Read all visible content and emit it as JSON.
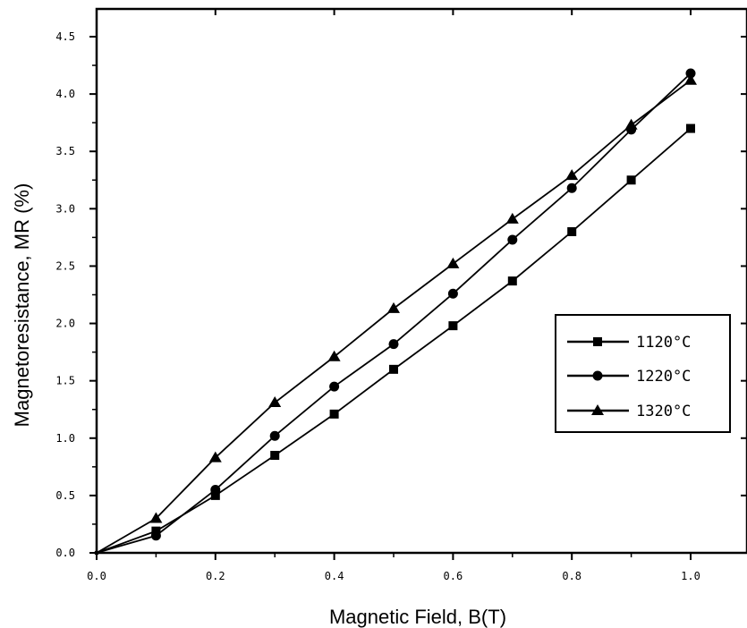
{
  "chart_data": {
    "type": "line",
    "xlabel": "Magnetic Field, B(T)",
    "ylabel": "Magnetoresistance, MR (%)",
    "xlim": [
      0.0,
      1.0
    ],
    "ylim": [
      0.0,
      4.5
    ],
    "x_ticks": [
      "0.0",
      "0.2",
      "0.4",
      "0.6",
      "0.8",
      "1.0"
    ],
    "y_ticks": [
      "0.0",
      "0.5",
      "1.0",
      "1.5",
      "2.0",
      "2.5",
      "3.0",
      "3.5",
      "4.0",
      "4.5"
    ],
    "grid": false,
    "legend_position": "right",
    "colors": {
      "line": "#000000",
      "background": "#ffffff"
    },
    "series": [
      {
        "name": "1120°C",
        "marker": "square",
        "x": [
          0.0,
          0.1,
          0.2,
          0.3,
          0.4,
          0.5,
          0.6,
          0.7,
          0.8,
          0.9,
          1.0
        ],
        "values": [
          0.0,
          0.19,
          0.5,
          0.85,
          1.21,
          1.6,
          1.98,
          2.37,
          2.8,
          3.25,
          3.7
        ]
      },
      {
        "name": "1220°C",
        "marker": "circle",
        "x": [
          0.0,
          0.1,
          0.2,
          0.3,
          0.4,
          0.5,
          0.6,
          0.7,
          0.8,
          0.9,
          1.0
        ],
        "values": [
          0.0,
          0.15,
          0.55,
          1.02,
          1.45,
          1.82,
          2.26,
          2.73,
          3.18,
          3.69,
          4.18
        ]
      },
      {
        "name": "1320°C",
        "marker": "triangle",
        "x": [
          0.0,
          0.1,
          0.2,
          0.3,
          0.4,
          0.5,
          0.6,
          0.7,
          0.8,
          0.9,
          1.0
        ],
        "values": [
          0.0,
          0.3,
          0.83,
          1.31,
          1.71,
          2.13,
          2.52,
          2.91,
          3.29,
          3.73,
          4.12
        ]
      }
    ]
  }
}
